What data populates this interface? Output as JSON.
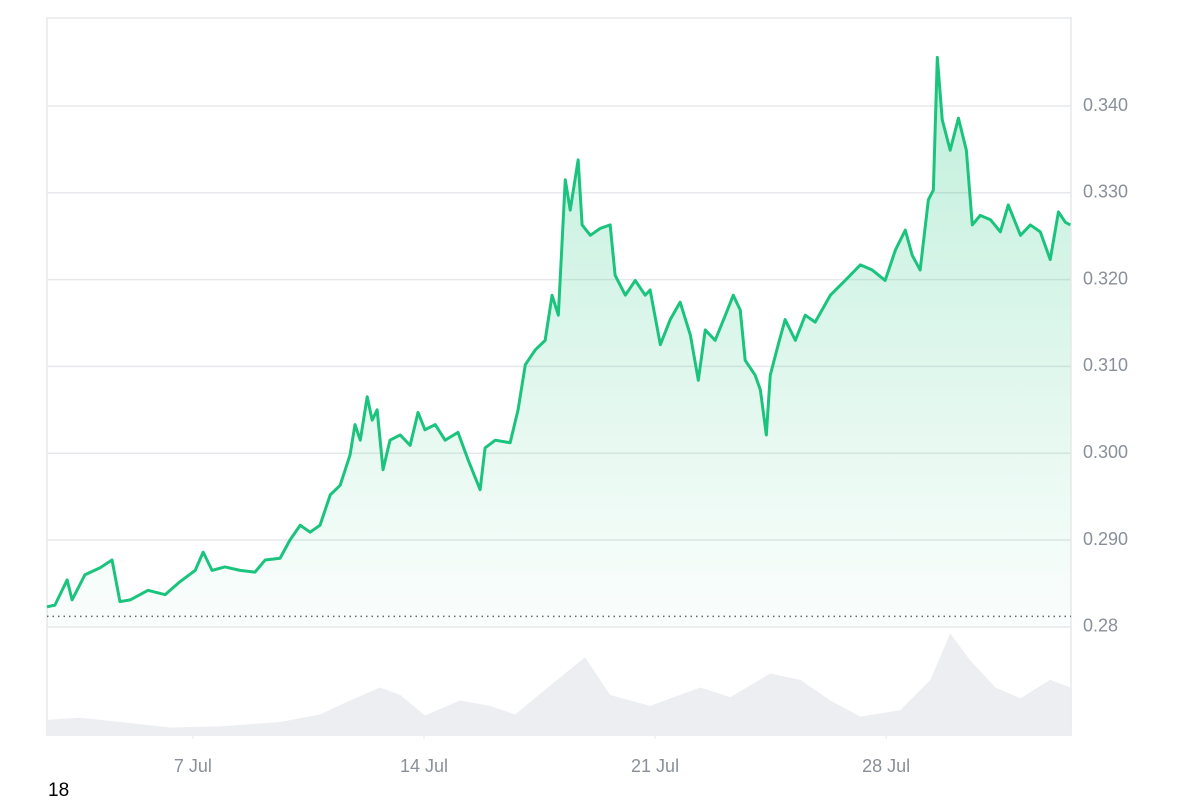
{
  "chart_data": {
    "type": "line",
    "area": true,
    "grid": true,
    "color": "#1bc47d",
    "xlim": [
      2.58,
      33.6
    ],
    "xticks": [
      {
        "value": 7,
        "label": "7 Jul"
      },
      {
        "value": 14,
        "label": "14 Jul"
      },
      {
        "value": 21,
        "label": "21 Jul"
      },
      {
        "value": 28,
        "label": "28 Jul"
      }
    ],
    "ylim": [
      0.28,
      0.35
    ],
    "yticks": [
      0.28,
      {
        "value": 0.29,
        "label": "0.290"
      },
      {
        "value": 0.3,
        "label": "0.300"
      },
      {
        "value": 0.31,
        "label": "0.310"
      },
      {
        "value": 0.32,
        "label": "0.320"
      },
      {
        "value": 0.33,
        "label": "0.330"
      },
      {
        "value": 0.34,
        "label": "0.340"
      }
    ],
    "baseline": 0.2812,
    "x": [
      2.58,
      2.82,
      3.19,
      3.34,
      3.73,
      4.19,
      4.55,
      4.79,
      5.1,
      5.64,
      6.16,
      6.61,
      7.07,
      7.31,
      7.58,
      7.97,
      8.43,
      8.88,
      9.19,
      9.64,
      9.94,
      10.25,
      10.55,
      10.85,
      11.16,
      11.46,
      11.76,
      11.91,
      12.07,
      12.28,
      12.43,
      12.58,
      12.76,
      12.97,
      13.28,
      13.58,
      13.82,
      14.03,
      14.34,
      14.64,
      15.03,
      15.34,
      15.7,
      15.85,
      16.16,
      16.61,
      16.85,
      17.07,
      17.37,
      17.67,
      17.88,
      18.07,
      18.28,
      18.43,
      18.67,
      18.79,
      19.04,
      19.34,
      19.64,
      19.79,
      20.1,
      20.4,
      20.7,
      20.85,
      21.16,
      21.46,
      21.76,
      22.07,
      22.31,
      22.52,
      22.82,
      23.13,
      23.37,
      23.58,
      23.73,
      24.03,
      24.19,
      24.37,
      24.49,
      24.73,
      24.94,
      25.25,
      25.55,
      25.85,
      26.31,
      26.76,
      27.22,
      27.58,
      27.97,
      28.28,
      28.58,
      28.79,
      29.03,
      29.28,
      29.43,
      29.55,
      29.7,
      29.94,
      30.19,
      30.43,
      30.61,
      30.85,
      31.16,
      31.46,
      31.7,
      32.07,
      32.37,
      32.67,
      32.97,
      33.22,
      33.43,
      33.58
    ],
    "values": [
      0.2823,
      0.2825,
      0.2854,
      0.2831,
      0.286,
      0.2868,
      0.2877,
      0.2829,
      0.2831,
      0.2842,
      0.2837,
      0.2852,
      0.2865,
      0.2886,
      0.2865,
      0.2869,
      0.2865,
      0.2863,
      0.2877,
      0.2879,
      0.29,
      0.2917,
      0.2909,
      0.2917,
      0.2952,
      0.2963,
      0.2998,
      0.3033,
      0.3015,
      0.3065,
      0.3038,
      0.305,
      0.2981,
      0.3015,
      0.3021,
      0.3009,
      0.3047,
      0.3027,
      0.3033,
      0.3015,
      0.3024,
      0.2992,
      0.2958,
      0.3006,
      0.3015,
      0.3012,
      0.305,
      0.3102,
      0.3119,
      0.313,
      0.3182,
      0.3159,
      0.3315,
      0.328,
      0.3338,
      0.3263,
      0.3251,
      0.3259,
      0.3263,
      0.3205,
      0.3182,
      0.3199,
      0.3182,
      0.3188,
      0.3125,
      0.3154,
      0.3174,
      0.3136,
      0.3084,
      0.3142,
      0.313,
      0.3159,
      0.3182,
      0.3165,
      0.3107,
      0.309,
      0.3073,
      0.3021,
      0.309,
      0.3125,
      0.3154,
      0.313,
      0.3159,
      0.3151,
      0.3182,
      0.3199,
      0.3217,
      0.3211,
      0.3199,
      0.3234,
      0.3257,
      0.3228,
      0.3211,
      0.3292,
      0.3303,
      0.3456,
      0.3384,
      0.3349,
      0.3386,
      0.3349,
      0.3263,
      0.3274,
      0.3269,
      0.3255,
      0.3286,
      0.3251,
      0.3263,
      0.3255,
      0.3223,
      0.3278,
      0.3266,
      0.3263
    ],
    "volume": {
      "color": "#eceef1",
      "ylim": [
        0,
        100
      ],
      "x": [
        2.58,
        3.58,
        4.79,
        6.31,
        7.82,
        9.64,
        10.85,
        11.76,
        12.67,
        13.28,
        14.03,
        15.09,
        16.0,
        16.76,
        17.67,
        18.88,
        19.64,
        20.85,
        22.37,
        23.28,
        24.49,
        25.4,
        26.31,
        27.22,
        28.43,
        29.34,
        29.94,
        30.55,
        31.31,
        32.07,
        32.97,
        33.58
      ],
      "values": [
        14,
        16,
        12,
        7,
        8,
        12,
        19,
        32,
        44,
        37,
        18,
        32,
        27,
        19,
        42,
        72,
        37,
        27,
        44,
        35,
        57,
        51,
        32,
        17,
        23,
        51,
        94,
        69,
        44,
        34,
        51,
        44
      ]
    }
  },
  "page": {
    "corner_label": "18"
  }
}
